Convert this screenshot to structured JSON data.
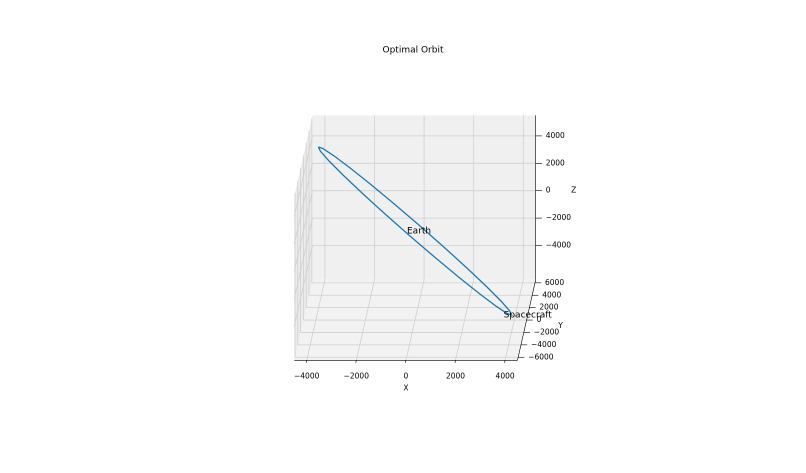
{
  "chart_data": {
    "type": "line3d",
    "title": "Optimal Orbit",
    "xlabel": "X",
    "ylabel": "Y",
    "zlabel": "Z",
    "xlim": [
      -4500,
      4500
    ],
    "ylim": [
      -6500,
      6500
    ],
    "zlim": [
      -6500,
      5500
    ],
    "xticks": [
      {
        "value": -4000,
        "label": "−4000"
      },
      {
        "value": -2000,
        "label": "−2000"
      },
      0,
      2000,
      4000
    ],
    "yticks": [
      {
        "value": -6000,
        "label": "−6000"
      },
      {
        "value": -4000,
        "label": "−4000"
      },
      {
        "value": -2000,
        "label": "−2000"
      },
      0,
      2000,
      4000,
      6000
    ],
    "zticks": [
      {
        "value": -4000,
        "label": "−4000"
      },
      {
        "value": -2000,
        "label": "−2000"
      },
      0,
      2000,
      4000
    ],
    "grid": true,
    "series": [
      {
        "color": "#1f77b4",
        "x": [
          -4100,
          -3914,
          -3461,
          -2772,
          -1894,
          -888,
          180,
          1236,
          2206,
          3026,
          3641,
          4008,
          4100,
          3914,
          3461,
          2772,
          1894,
          888,
          -180,
          -1236,
          -2206,
          -3026,
          -3641,
          -4008,
          -4100
        ],
        "y": [
          3600,
          3478,
          3118,
          2545,
          1800,
          932,
          0,
          -932,
          -1800,
          -2545,
          -3118,
          -3478,
          -3600,
          -3478,
          -3118,
          -2545,
          -1800,
          -932,
          0,
          932,
          1800,
          2545,
          3118,
          3478,
          3600
        ],
        "z": [
          4500,
          4451,
          4097,
          3465,
          2596,
          1552,
          400,
          -780,
          -1904,
          -2899,
          -3697,
          -4243,
          -4500,
          -4451,
          -4097,
          -3465,
          -2596,
          -1552,
          -400,
          780,
          1904,
          2899,
          3697,
          4243,
          4500
        ]
      }
    ],
    "annotations": [
      {
        "text": "Earth",
        "x": 0,
        "y": 0,
        "z": 0,
        "color": "#000000"
      },
      {
        "text": "Spacecraft",
        "x": 4100,
        "y": -3600,
        "z": -4500,
        "color": "#ff0000"
      }
    ]
  }
}
